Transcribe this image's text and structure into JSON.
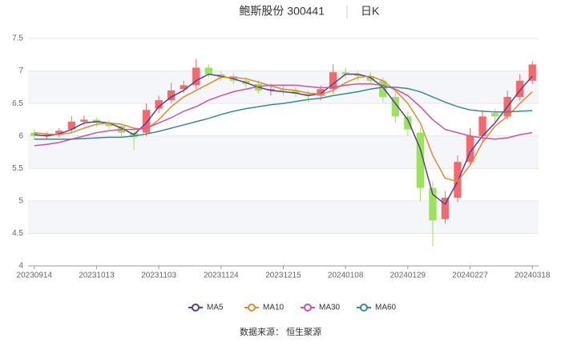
{
  "chart_data": {
    "type": "candlestick",
    "title": "鲍斯股份 300441",
    "period": "日K",
    "source": "数据来源：  恒生聚源",
    "categories": [
      "20230914",
      null,
      null,
      null,
      null,
      "20231013",
      null,
      null,
      null,
      null,
      "20231103",
      null,
      null,
      null,
      null,
      "20231124",
      null,
      null,
      null,
      null,
      "20231215",
      null,
      null,
      null,
      null,
      "20240108",
      null,
      null,
      null,
      null,
      "20240129",
      null,
      null,
      null,
      null,
      "20240227",
      null,
      null,
      null,
      null,
      "20240318"
    ],
    "open": [
      6.05,
      6.0,
      6.02,
      6.1,
      6.22,
      6.25,
      6.2,
      6.15,
      6.05,
      6.05,
      6.42,
      6.55,
      6.72,
      6.78,
      7.05,
      6.95,
      6.92,
      6.85,
      6.8,
      6.7,
      6.72,
      6.7,
      6.65,
      6.62,
      6.72,
      6.98,
      6.95,
      6.92,
      6.85,
      6.6,
      6.3,
      6.05,
      5.2,
      4.72,
      5.05,
      5.6,
      6.0,
      6.35,
      6.3,
      6.6,
      6.85
    ],
    "high": [
      6.1,
      6.06,
      6.12,
      6.3,
      6.32,
      6.28,
      6.24,
      6.18,
      6.08,
      6.5,
      6.62,
      6.82,
      6.85,
      7.18,
      7.1,
      7.0,
      6.97,
      6.9,
      6.85,
      6.8,
      6.78,
      6.75,
      6.7,
      6.78,
      7.1,
      7.05,
      7.0,
      6.98,
      6.9,
      6.68,
      6.38,
      6.12,
      5.3,
      5.15,
      5.7,
      6.12,
      6.4,
      6.42,
      6.7,
      6.95,
      7.15
    ],
    "low": [
      5.95,
      5.94,
      5.98,
      6.05,
      6.16,
      6.14,
      6.1,
      5.98,
      5.78,
      6.0,
      6.35,
      6.5,
      6.66,
      6.72,
      6.9,
      6.85,
      6.8,
      6.75,
      6.65,
      6.62,
      6.62,
      6.6,
      6.52,
      6.55,
      6.65,
      6.88,
      6.85,
      6.8,
      6.52,
      6.2,
      6.0,
      5.0,
      4.3,
      4.65,
      4.98,
      5.55,
      5.9,
      6.2,
      6.25,
      6.55,
      6.8
    ],
    "close": [
      6.0,
      6.02,
      6.08,
      6.22,
      6.25,
      6.2,
      6.15,
      6.05,
      5.98,
      6.4,
      6.55,
      6.7,
      6.78,
      7.05,
      6.95,
      6.9,
      6.85,
      6.8,
      6.7,
      6.72,
      6.7,
      6.65,
      6.62,
      6.72,
      6.98,
      6.95,
      6.92,
      6.85,
      6.6,
      6.3,
      6.1,
      5.2,
      4.7,
      5.05,
      5.6,
      6.0,
      6.3,
      6.3,
      6.6,
      6.85,
      7.1
    ],
    "up_color": "#f4696b",
    "down_color": "#9be35a",
    "series": [
      {
        "name": "MA5",
        "color": "#5a3d9a",
        "values": [
          6.02,
          6.0,
          6.03,
          6.1,
          6.2,
          6.22,
          6.2,
          6.12,
          6.02,
          6.2,
          6.45,
          6.6,
          6.7,
          6.85,
          6.95,
          6.92,
          6.88,
          6.82,
          6.75,
          6.7,
          6.68,
          6.66,
          6.62,
          6.65,
          6.8,
          6.95,
          6.95,
          6.9,
          6.75,
          6.5,
          6.25,
          5.8,
          5.1,
          4.95,
          5.3,
          5.75,
          6.0,
          6.2,
          6.45,
          6.7,
          6.92
        ]
      },
      {
        "name": "MA10",
        "color": "#e5892f",
        "values": [
          6.05,
          6.03,
          6.02,
          6.05,
          6.12,
          6.18,
          6.2,
          6.18,
          6.12,
          6.1,
          6.25,
          6.45,
          6.6,
          6.7,
          6.8,
          6.9,
          6.9,
          6.88,
          6.83,
          6.77,
          6.72,
          6.7,
          6.66,
          6.64,
          6.7,
          6.82,
          6.9,
          6.92,
          6.85,
          6.7,
          6.5,
          6.2,
          5.7,
          5.35,
          5.3,
          5.55,
          5.9,
          6.15,
          6.3,
          6.5,
          6.68
        ]
      },
      {
        "name": "MA30",
        "color": "#d6509e",
        "values": [
          5.85,
          5.87,
          5.9,
          5.95,
          6.0,
          6.05,
          6.08,
          6.1,
          6.1,
          6.12,
          6.2,
          6.28,
          6.38,
          6.45,
          6.55,
          6.62,
          6.68,
          6.72,
          6.76,
          6.78,
          6.78,
          6.78,
          6.76,
          6.74,
          6.75,
          6.78,
          6.8,
          6.8,
          6.78,
          6.72,
          6.62,
          6.45,
          6.25,
          6.1,
          6.05,
          6.0,
          5.97,
          5.95,
          5.97,
          6.02,
          6.05
        ]
      },
      {
        "name": "MA60",
        "color": "#3a8c8c",
        "values": [
          5.95,
          5.95,
          5.95,
          5.95,
          5.96,
          5.97,
          5.98,
          5.98,
          6.0,
          6.03,
          6.07,
          6.12,
          6.17,
          6.22,
          6.27,
          6.33,
          6.38,
          6.42,
          6.45,
          6.48,
          6.5,
          6.53,
          6.56,
          6.58,
          6.62,
          6.65,
          6.68,
          6.72,
          6.75,
          6.75,
          6.73,
          6.68,
          6.6,
          6.52,
          6.45,
          6.4,
          6.38,
          6.37,
          6.37,
          6.38,
          6.39
        ]
      }
    ],
    "ylim": [
      4,
      7.5
    ],
    "yticks": [
      4,
      4.5,
      5,
      5.5,
      6,
      6.5,
      7,
      7.5
    ],
    "grid": true
  }
}
